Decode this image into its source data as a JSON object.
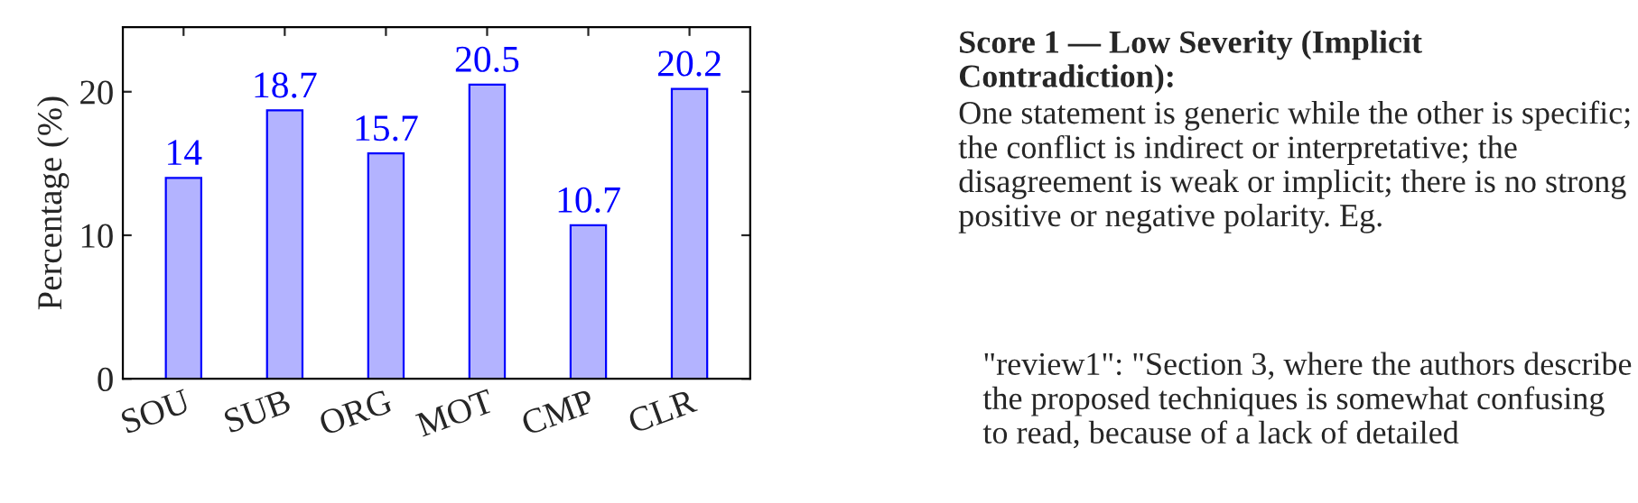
{
  "chart_data": {
    "type": "bar",
    "ylabel": "Percentage (%)",
    "categories": [
      "SOU",
      "SUB",
      "ORG",
      "MOT",
      "CMP",
      "CLR"
    ],
    "values": [
      14,
      18.7,
      15.7,
      20.5,
      10.7,
      20.2
    ],
    "color": "#b3b3ff",
    "ylim": [
      0,
      24.5
    ],
    "yticks": [
      0,
      10,
      20
    ],
    "grid": false,
    "data_labels": true,
    "annotations": [
      "Score 1 — Low Severity (Implicit Contradiction):",
      "One statement is generic while the other is specific; the conflict is indirect or interpretative; the disagreement is weak or implicit; there is no strong positive or negative polarity. Eg.",
      "\"review1\": \"Section 3, where the authors describe the proposed techniques is somewhat confusing to read, because of a lack of detailed"
    ]
  }
}
